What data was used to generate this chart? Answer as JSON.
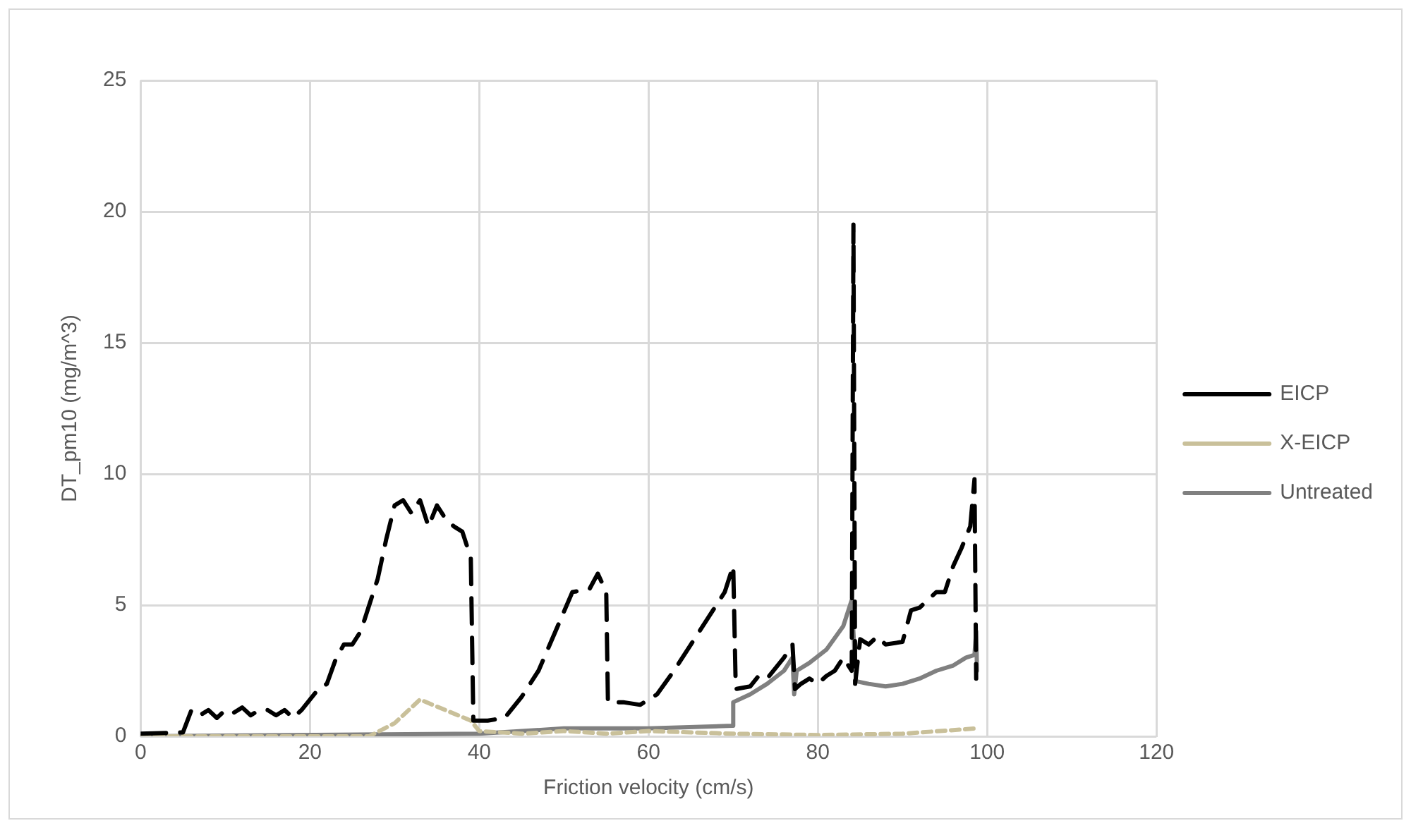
{
  "chart_data": {
    "type": "line",
    "xlabel": "Friction velocity (cm/s)",
    "ylabel": "DT_pm10 (mg/m^3)",
    "xlim": [
      0,
      120
    ],
    "xticks": [
      0,
      20,
      40,
      60,
      80,
      100,
      120
    ],
    "ylim": [
      0,
      25
    ],
    "yticks": [
      0,
      5,
      10,
      15,
      20,
      25
    ],
    "grid": true,
    "legend": "right",
    "marker": "none",
    "series": [
      {
        "name": "EICP",
        "color": "#000000",
        "line_style": "dashed",
        "x": [
          0,
          5,
          6,
          7,
          8,
          9,
          10,
          11,
          12,
          13,
          14,
          15,
          16,
          17,
          18,
          19,
          20,
          21,
          22,
          23,
          24,
          25,
          26,
          27,
          28,
          29,
          30,
          31,
          32,
          33,
          34,
          35,
          36,
          37,
          38,
          39,
          39.3,
          40,
          41,
          43,
          45,
          47,
          49,
          51,
          53,
          54,
          55,
          55.2,
          57,
          59,
          61,
          63,
          65,
          67,
          69,
          70,
          70.3,
          72,
          73,
          74,
          76,
          77,
          77.3,
          78,
          79,
          80,
          81,
          82,
          83,
          84,
          84.2,
          84.4,
          85,
          86,
          87,
          88,
          90,
          91,
          92,
          93,
          94,
          95,
          96,
          97,
          98,
          98.5,
          98.7
        ],
        "values": [
          0.1,
          0.15,
          1,
          0.8,
          1,
          0.7,
          1,
          0.9,
          1.1,
          0.8,
          1,
          1,
          0.8,
          1,
          0.7,
          1,
          1.4,
          1.8,
          2,
          2.9,
          3.5,
          3.5,
          4,
          5,
          6,
          7.5,
          8.8,
          9,
          8.5,
          9,
          8,
          8.8,
          8.3,
          8,
          7.8,
          6.8,
          0.6,
          0.6,
          0.6,
          0.7,
          1.5,
          2.5,
          4,
          5.5,
          5.6,
          6.2,
          5.5,
          1.3,
          1.3,
          1.2,
          1.6,
          2.5,
          3.5,
          4.5,
          5.5,
          6.5,
          1.8,
          1.9,
          2.3,
          2.2,
          3,
          3.5,
          1.8,
          2,
          2.2,
          2,
          2.3,
          2.5,
          3,
          2.5,
          19.5,
          2,
          3.7,
          3.5,
          3.8,
          3.5,
          3.6,
          4.8,
          4.9,
          5.2,
          5.5,
          5.5,
          6.5,
          7.2,
          8,
          9.8,
          2.2
        ]
      },
      {
        "name": "X-EICP",
        "color": "#c9c09a",
        "line_style": "dashed",
        "x": [
          0,
          27,
          30,
          33,
          36,
          39,
          40,
          45,
          50,
          55,
          60,
          70,
          80,
          90,
          98.7
        ],
        "values": [
          0,
          0,
          0.5,
          1.4,
          1,
          0.6,
          0.2,
          0.1,
          0.2,
          0.1,
          0.2,
          0.1,
          0.05,
          0.1,
          0.3
        ]
      },
      {
        "name": "Untreated",
        "color": "#808080",
        "line_style": "solid",
        "x": [
          0,
          40,
          50,
          55,
          60,
          69.9,
          70,
          72,
          74,
          76,
          77,
          77.2,
          77.5,
          79,
          81,
          83,
          84,
          84.5,
          86,
          88,
          90,
          92,
          94,
          96,
          97.5,
          98.5,
          98.7,
          98.8
        ],
        "values": [
          0,
          0.1,
          0.3,
          0.3,
          0.3,
          0.4,
          1.3,
          1.6,
          2,
          2.5,
          3,
          1.6,
          2.5,
          2.8,
          3.3,
          4.2,
          5.2,
          2.1,
          2,
          1.9,
          2,
          2.2,
          2.5,
          2.7,
          3,
          3.1,
          4,
          2.5
        ]
      }
    ]
  }
}
